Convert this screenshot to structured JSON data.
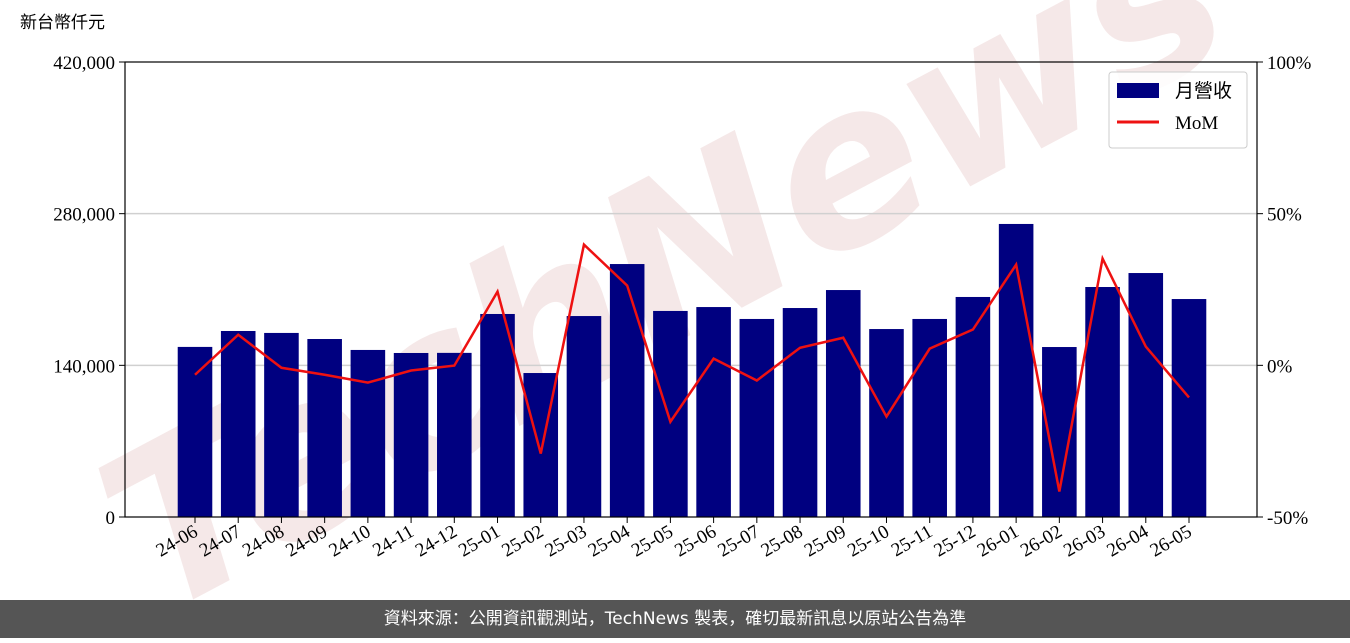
{
  "chart_data": {
    "type": "bar-line",
    "y_label": "新台幣仟元",
    "watermark": "TechNews",
    "categories": [
      "24-06",
      "24-07",
      "24-08",
      "24-09",
      "24-10",
      "24-11",
      "24-12",
      "25-01",
      "25-02",
      "25-03",
      "25-04",
      "25-05",
      "25-06",
      "25-07",
      "25-08",
      "25-09",
      "25-10",
      "25-11",
      "25-12",
      "26-01",
      "26-02",
      "26-03",
      "26-04",
      "26-05"
    ],
    "series": [
      {
        "name": "月營收",
        "type": "bar",
        "color": "#000080",
        "values": [
          157000,
          171700,
          169900,
          164300,
          154200,
          151400,
          151500,
          187400,
          132900,
          185500,
          233500,
          190200,
          193800,
          182800,
          192900,
          209500,
          173500,
          182800,
          203100,
          270500,
          156900,
          212300,
          225200,
          201200
        ]
      },
      {
        "name": "MoM",
        "type": "line",
        "axis": "y2",
        "color": "#ee1111",
        "values": [
          -3.1,
          10.1,
          -0.8,
          -3.1,
          -5.7,
          -1.7,
          -0.1,
          24.3,
          -29.1,
          39.8,
          26.3,
          -18.6,
          2.2,
          -5.0,
          5.8,
          9.1,
          -16.9,
          5.5,
          11.8,
          33.2,
          -41.6,
          35.2,
          6.2,
          -10.6
        ]
      }
    ],
    "ylim": [
      0,
      420000
    ],
    "yticks": [
      0,
      {
        "value": 140000,
        "label": "140,000"
      },
      {
        "value": 280000,
        "label": "280,000"
      },
      {
        "value": 420000,
        "label": "420,000"
      }
    ],
    "y2lim": [
      -50,
      100
    ],
    "y2ticks": [
      {
        "value": -50,
        "label": "-50%"
      },
      {
        "value": 0,
        "label": "0%"
      },
      {
        "value": 50,
        "label": "50%"
      },
      {
        "value": 100,
        "label": "100%"
      }
    ],
    "grid": true,
    "legend": "upper right",
    "footer": "資料來源：公開資訊觀測站，TechNews 製表，確切最新訊息以原站公告為準"
  }
}
